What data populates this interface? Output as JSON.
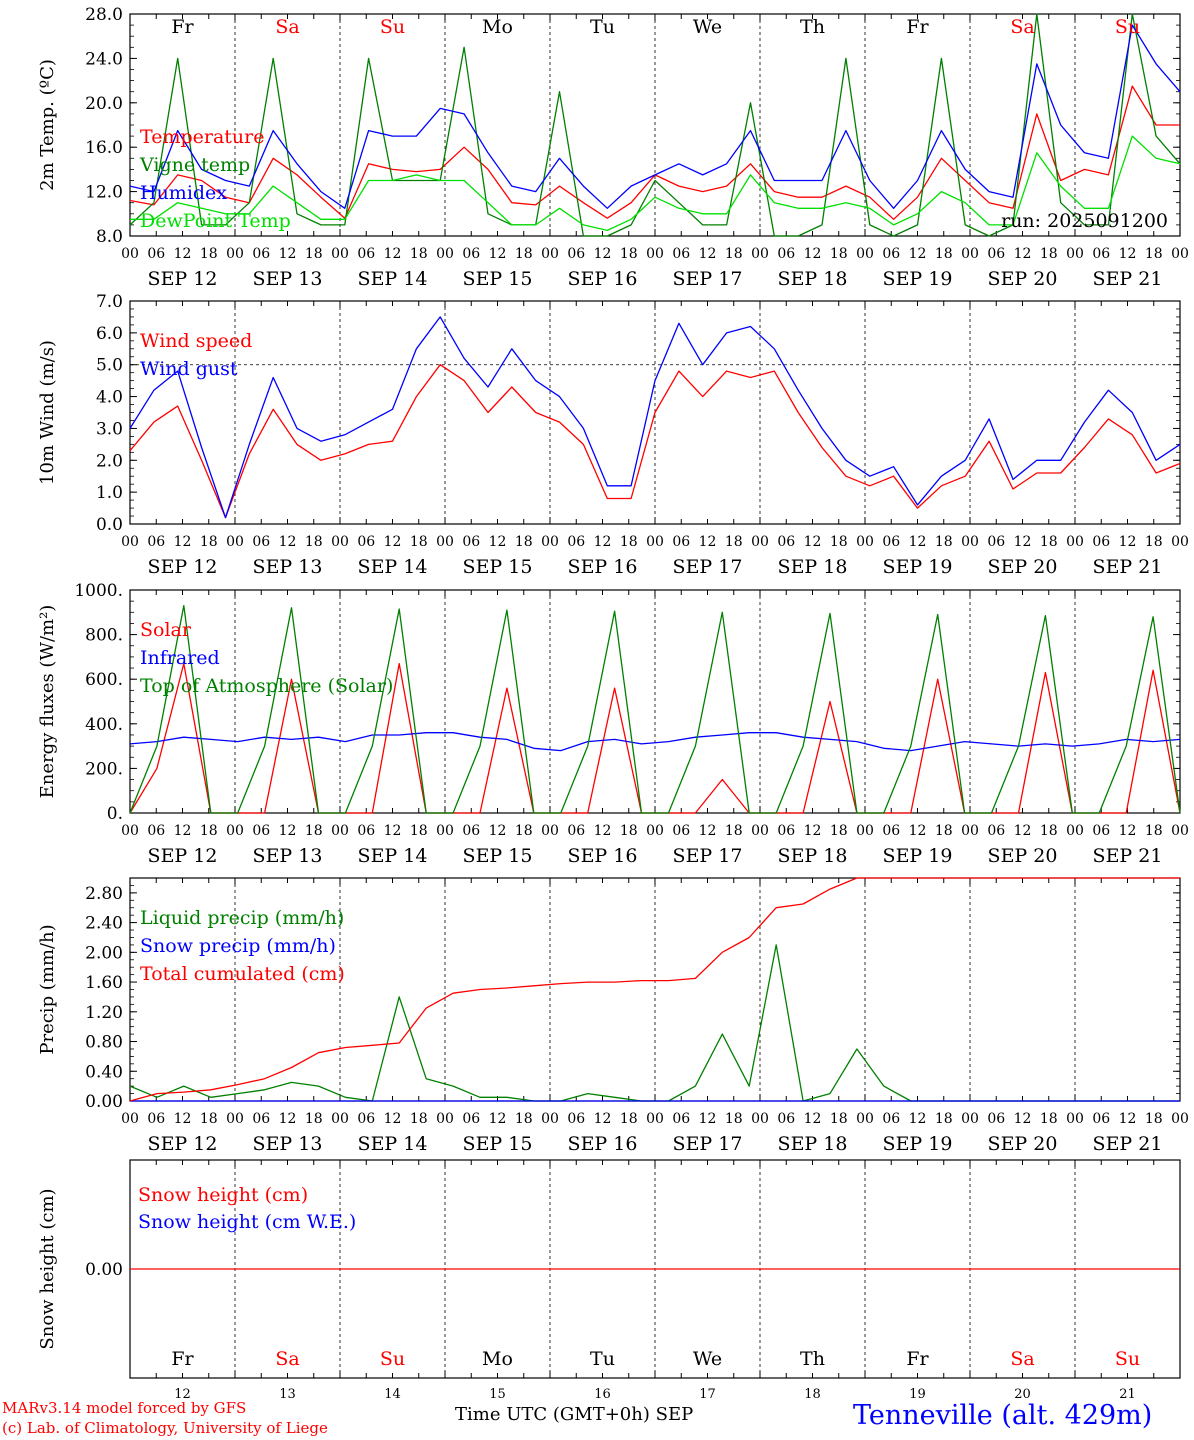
{
  "chart_data": {
    "type": "line",
    "run_label": "run: 2025091200",
    "time_axis": {
      "start": "2025-09-12T00:00Z",
      "step_hours": 6,
      "hour_ticks": [
        "00",
        "06",
        "12",
        "18"
      ],
      "days": [
        "SEP 12",
        "SEP 13",
        "SEP 14",
        "SEP 15",
        "SEP 16",
        "SEP 17",
        "SEP 18",
        "SEP 19",
        "SEP 20",
        "SEP 21"
      ],
      "weekdays": [
        "Fr",
        "Sa",
        "Su",
        "Mo",
        "Tu",
        "We",
        "Th",
        "Fr",
        "Sa",
        "Su"
      ],
      "weekend": [
        false,
        true,
        true,
        false,
        false,
        false,
        false,
        false,
        true,
        true
      ],
      "bottom_day_numbers": [
        "12",
        "13",
        "14",
        "15",
        "16",
        "17",
        "18",
        "19",
        "20",
        "21"
      ],
      "bottom_title": "Time UTC (GMT+0h)",
      "bottom_month": "SEP"
    },
    "panels": [
      {
        "ylabel": "2m Temp. (ºC)",
        "yticks": [
          "8.0",
          "12.0",
          "16.0",
          "20.0",
          "24.0",
          "28.0"
        ],
        "ylim": [
          8,
          28
        ],
        "series": [
          {
            "name": "Temperature",
            "color": "#ff0000",
            "values": [
              11.2,
              10.8,
              13.5,
              13.0,
              11.5,
              11.0,
              15.0,
              13.5,
              11.5,
              9.6,
              14.5,
              14.0,
              13.8,
              14.0,
              16.0,
              14.0,
              11.0,
              10.8,
              12.5,
              11.0,
              9.6,
              11.0,
              13.5,
              12.5,
              12.0,
              12.5,
              14.5,
              12.0,
              11.5,
              11.5,
              12.5,
              11.5,
              9.5,
              11.5,
              15.0,
              13.0,
              11.0,
              10.5,
              19.0,
              13.0,
              14.0,
              13.5,
              21.5,
              18.0,
              18.0
            ]
          },
          {
            "name": "Vigne temp",
            "color": "#008000",
            "values": [
              9.0,
              11.0,
              24.0,
              9.0,
              9.0,
              11.0,
              24.0,
              10.0,
              9.0,
              9.0,
              24.0,
              13.0,
              13.0,
              13.0,
              25.0,
              10.0,
              9.0,
              9.0,
              21.0,
              8.0,
              8.0,
              9.0,
              13.0,
              11.0,
              9.0,
              9.0,
              20.0,
              8.0,
              8.0,
              9.0,
              24.0,
              9.0,
              8.0,
              9.0,
              24.0,
              9.0,
              8.0,
              9.0,
              28.0,
              11.0,
              9.0,
              9.0,
              28.0,
              17.0,
              14.5
            ]
          },
          {
            "name": "Humidex",
            "color": "#0000ff",
            "values": [
              12.5,
              12.0,
              17.5,
              14.0,
              13.0,
              12.5,
              17.5,
              14.5,
              12.0,
              10.5,
              17.5,
              17.0,
              17.0,
              19.5,
              19.0,
              15.5,
              12.5,
              12.0,
              15.0,
              12.5,
              10.5,
              12.5,
              13.5,
              14.5,
              13.5,
              14.5,
              17.5,
              13.0,
              13.0,
              13.0,
              17.5,
              13.0,
              10.5,
              13.0,
              17.5,
              14.0,
              12.0,
              11.5,
              23.5,
              18.0,
              15.5,
              15.0,
              27.0,
              23.5,
              21.0
            ]
          },
          {
            "name": "DewPoint Temp",
            "color": "#00e000",
            "values": [
              9.5,
              9.5,
              11.0,
              10.5,
              10.0,
              10.0,
              12.5,
              11.0,
              9.5,
              9.5,
              13.0,
              13.0,
              13.5,
              13.0,
              13.0,
              11.0,
              9.0,
              9.0,
              10.5,
              9.0,
              8.5,
              9.5,
              11.5,
              10.5,
              10.0,
              10.0,
              13.5,
              11.0,
              10.5,
              10.5,
              11.0,
              10.5,
              9.0,
              10.0,
              12.0,
              11.0,
              9.0,
              9.0,
              15.5,
              12.5,
              10.5,
              10.5,
              17.0,
              15.0,
              14.5
            ]
          }
        ]
      },
      {
        "ylabel": "10m Wind (m/s)",
        "yticks": [
          "0.0",
          "1.0",
          "2.0",
          "3.0",
          "4.0",
          "5.0",
          "6.0",
          "7.0"
        ],
        "ylim": [
          0,
          7
        ],
        "series": [
          {
            "name": "Wind speed",
            "color": "#ff0000",
            "values": [
              2.3,
              3.2,
              3.7,
              2.0,
              0.2,
              2.2,
              3.6,
              2.5,
              2.0,
              2.2,
              2.5,
              2.6,
              4.0,
              5.0,
              4.5,
              3.5,
              4.3,
              3.5,
              3.2,
              2.5,
              0.8,
              0.8,
              3.5,
              4.8,
              4.0,
              4.8,
              4.6,
              4.8,
              3.5,
              2.4,
              1.5,
              1.2,
              1.5,
              0.5,
              1.2,
              1.5,
              2.6,
              1.1,
              1.6,
              1.6,
              2.4,
              3.3,
              2.8,
              1.6,
              1.9
            ]
          },
          {
            "name": "Wind gust",
            "color": "#0000ff",
            "values": [
              3.0,
              4.2,
              4.8,
              2.4,
              0.2,
              2.5,
              4.6,
              3.0,
              2.6,
              2.8,
              3.2,
              3.6,
              5.5,
              6.5,
              5.2,
              4.3,
              5.5,
              4.5,
              4.0,
              3.0,
              1.2,
              1.2,
              4.5,
              6.3,
              5.0,
              6.0,
              6.2,
              5.5,
              4.2,
              3.0,
              2.0,
              1.5,
              1.8,
              0.6,
              1.5,
              2.0,
              3.3,
              1.4,
              2.0,
              2.0,
              3.2,
              4.2,
              3.5,
              2.0,
              2.5
            ]
          }
        ]
      },
      {
        "ylabel": "Energy fluxes (W/m²)",
        "yticks": [
          "0.",
          "200.",
          "400.",
          "600.",
          "800.",
          "1000."
        ],
        "ylim": [
          0,
          1000
        ],
        "series": [
          {
            "name": "Solar",
            "color": "#ff0000",
            "values": [
              0,
              200,
              670,
              0,
              0,
              0,
              600,
              0,
              0,
              0,
              670,
              0,
              0,
              0,
              560,
              0,
              0,
              0,
              560,
              0,
              0,
              0,
              150,
              0,
              0,
              0,
              500,
              0,
              0,
              0,
              600,
              0,
              0,
              0,
              630,
              0,
              0,
              0,
              640,
              0
            ]
          },
          {
            "name": "Infrared",
            "color": "#0000ff",
            "values": [
              310,
              320,
              340,
              330,
              320,
              340,
              330,
              340,
              320,
              350,
              350,
              360,
              360,
              340,
              330,
              290,
              280,
              320,
              330,
              310,
              320,
              340,
              350,
              360,
              360,
              340,
              330,
              320,
              290,
              280,
              300,
              320,
              310,
              300,
              310,
              300,
              310,
              330,
              320,
              330
            ]
          },
          {
            "name": "Top of Atmosphere (Solar)",
            "color": "#008000",
            "values": [
              0,
              300,
              930,
              0,
              0,
              300,
              920,
              0,
              0,
              300,
              915,
              0,
              0,
              300,
              910,
              0,
              0,
              300,
              905,
              0,
              0,
              300,
              900,
              0,
              0,
              300,
              895,
              0,
              0,
              300,
              890,
              0,
              0,
              300,
              885,
              0,
              0,
              300,
              880,
              0
            ]
          }
        ]
      },
      {
        "ylabel": "Precip (mm/h)",
        "yticks": [
          "0.00",
          "0.40",
          "0.80",
          "1.20",
          "1.60",
          "2.00",
          "2.40",
          "2.80"
        ],
        "ylim": [
          0,
          3.0
        ],
        "series": [
          {
            "name": "Liquid precip (mm/h)",
            "color": "#008000",
            "values": [
              0.2,
              0.05,
              0.2,
              0.05,
              0.1,
              0.15,
              0.25,
              0.2,
              0.05,
              0.0,
              1.4,
              0.3,
              0.2,
              0.05,
              0.05,
              0.0,
              0.0,
              0.1,
              0.05,
              0.0,
              0.0,
              0.2,
              0.9,
              0.2,
              2.1,
              0.0,
              0.1,
              0.7,
              0.2,
              0.0,
              0.0,
              0.0,
              0.0,
              0.0,
              0.0,
              0.0,
              0.0,
              0.0,
              0.0,
              0.0
            ]
          },
          {
            "name": "Snow precip (mm/h)",
            "color": "#0000ff",
            "values": [
              0,
              0,
              0,
              0,
              0,
              0,
              0,
              0,
              0,
              0,
              0,
              0,
              0,
              0,
              0,
              0,
              0,
              0,
              0,
              0,
              0,
              0,
              0,
              0,
              0,
              0,
              0,
              0,
              0,
              0,
              0,
              0,
              0,
              0,
              0,
              0,
              0,
              0,
              0,
              0
            ]
          },
          {
            "name": "Total cumulated (cm)",
            "color": "#ff0000",
            "values": [
              0.0,
              0.1,
              0.12,
              0.15,
              0.22,
              0.3,
              0.45,
              0.65,
              0.72,
              0.75,
              0.78,
              1.25,
              1.45,
              1.5,
              1.52,
              1.55,
              1.58,
              1.6,
              1.6,
              1.62,
              1.62,
              1.65,
              2.0,
              2.2,
              2.6,
              2.65,
              2.85,
              3.0,
              3.0,
              3.0,
              3.0,
              3.0,
              3.0,
              3.0,
              3.0,
              3.0,
              3.0,
              3.0,
              3.0,
              3.0
            ]
          }
        ]
      },
      {
        "ylabel": "Snow height (cm)",
        "yticks": [
          "0.00"
        ],
        "ylim": [
          -1,
          1
        ],
        "series": [
          {
            "name": "Snow height (cm)",
            "color": "#ff0000",
            "values": [
              0,
              0,
              0,
              0,
              0,
              0,
              0,
              0,
              0,
              0,
              0
            ]
          },
          {
            "name": "Snow height (cm W.E.)",
            "color": "#0000ff",
            "values": []
          }
        ]
      }
    ]
  },
  "footer": {
    "credit_line1": "MARv3.14 model forced by GFS",
    "credit_line2": "(c) Lab. of Climatology, University of Liege",
    "station": "Tenneville (alt. 429m)"
  }
}
